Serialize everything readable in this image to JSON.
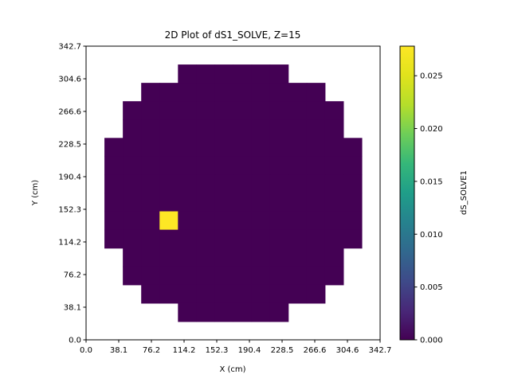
{
  "chart_data": {
    "type": "heatmap",
    "title": "2D Plot of dS1_SOLVE, Z=15",
    "xlabel": "X (cm)",
    "ylabel": "Y (cm)",
    "xlim": [
      0.0,
      342.7
    ],
    "ylim": [
      0.0,
      342.7
    ],
    "x_ticks": [
      "0.0",
      "38.1",
      "76.2",
      "114.2",
      "152.3",
      "190.4",
      "228.5",
      "266.6",
      "304.6",
      "342.7"
    ],
    "y_ticks": [
      "0.0",
      "38.1",
      "76.2",
      "114.2",
      "152.3",
      "190.4",
      "228.5",
      "266.6",
      "304.6",
      "342.7"
    ],
    "grid": false,
    "colormap": "viridis",
    "colorbar": {
      "label": "dS_SOLVE1",
      "range": [
        0.0,
        0.0278
      ],
      "ticks": [
        "0.000",
        "0.005",
        "0.010",
        "0.015",
        "0.020",
        "0.025"
      ],
      "tick_values": [
        0.0,
        0.005,
        0.01,
        0.015,
        0.02,
        0.025
      ]
    },
    "grid_size": [
      16,
      16
    ],
    "cell_size_cm": 21.42,
    "background_color": "#ffffff",
    "row_ranges_top_to_bottom": [
      null,
      [
        5,
        11
      ],
      [
        3,
        13
      ],
      [
        2,
        14
      ],
      [
        2,
        14
      ],
      [
        1,
        15
      ],
      [
        1,
        15
      ],
      [
        1,
        15
      ],
      [
        1,
        15
      ],
      [
        1,
        15
      ],
      [
        1,
        15
      ],
      [
        2,
        14
      ],
      [
        2,
        14
      ],
      [
        3,
        13
      ],
      [
        5,
        11
      ],
      null
    ],
    "row_ranges_note": "",
    "base_value": 0.0,
    "hot_cells": [
      {
        "col": 4,
        "row_from_bottom": 6,
        "value": 0.0278
      }
    ]
  }
}
